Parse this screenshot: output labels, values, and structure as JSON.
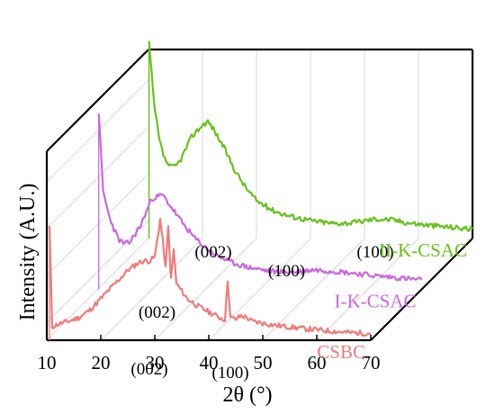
{
  "chart_data": {
    "type": "line",
    "title": "",
    "xlabel": "2θ (°)",
    "ylabel": "Intensity (A.U.)",
    "xlim": [
      10,
      70
    ],
    "x_ticks": [
      "10",
      "20",
      "30",
      "40",
      "50",
      "60",
      "70"
    ],
    "grid": true,
    "legend": "labels placed at right end of each series",
    "series": [
      {
        "name": "CSBC",
        "color": "#f07a7a",
        "depth": 0,
        "x": [
          10.5,
          11,
          12,
          14,
          16,
          18,
          20,
          22,
          24,
          25,
          26,
          27,
          28,
          29,
          30,
          31,
          31.5,
          32,
          32.5,
          33,
          33.5,
          34,
          35,
          36,
          38,
          40,
          42,
          43,
          43.5,
          44,
          45,
          46,
          47,
          48,
          50,
          52,
          55,
          58,
          62,
          66,
          70
        ],
        "y": [
          3,
          0.35,
          0.42,
          0.5,
          0.6,
          0.8,
          1.1,
          1.4,
          1.7,
          1.85,
          1.95,
          2.05,
          2.1,
          2.1,
          2.2,
          3.2,
          2.6,
          1.9,
          3.0,
          1.6,
          2.4,
          1.5,
          1.3,
          1.1,
          0.9,
          0.75,
          0.6,
          0.55,
          1.6,
          0.6,
          0.55,
          0.65,
          0.6,
          0.5,
          0.45,
          0.4,
          0.35,
          0.3,
          0.25,
          0.2,
          0.18
        ]
      },
      {
        "name": "I-K-CSAC",
        "color": "#cc66e0",
        "depth": 1,
        "x": [
          10.2,
          11,
          12,
          13,
          14,
          15,
          16,
          18,
          20,
          22,
          24,
          26,
          28,
          30,
          32,
          35,
          38,
          42,
          46,
          50,
          54,
          58,
          62,
          66,
          70
        ],
        "y": [
          4.7,
          2.6,
          2.0,
          1.6,
          1.3,
          1.2,
          1.25,
          1.7,
          2.4,
          2.5,
          2.1,
          1.7,
          1.35,
          1.1,
          0.9,
          0.7,
          0.58,
          0.48,
          0.45,
          0.52,
          0.48,
          0.42,
          0.35,
          0.3,
          0.25
        ]
      },
      {
        "name": "II-K-CSAC",
        "color": "#66c21a",
        "depth": 2,
        "x": [
          10.1,
          11,
          12,
          13,
          14,
          15,
          16,
          18,
          20,
          21,
          22,
          24,
          26,
          28,
          30,
          33,
          36,
          40,
          44,
          48,
          52,
          55,
          58,
          62,
          66,
          70
        ],
        "y": [
          5.2,
          3.6,
          2.6,
          2.1,
          1.9,
          1.9,
          2.1,
          2.7,
          3.0,
          3.1,
          2.9,
          2.4,
          1.8,
          1.35,
          1.0,
          0.75,
          0.6,
          0.48,
          0.4,
          0.42,
          0.52,
          0.5,
          0.42,
          0.35,
          0.3,
          0.25
        ]
      }
    ],
    "annotations": [
      {
        "text": "(002)",
        "series": "CSBC",
        "x": 29,
        "y": -0.9
      },
      {
        "text": "(100)",
        "series": "CSBC",
        "x": 44,
        "y": -1.0
      },
      {
        "text": "(002)",
        "series": "I-K-CSAC",
        "x": 21,
        "y": -0.75
      },
      {
        "text": "(100)",
        "series": "I-K-CSAC",
        "x": 45,
        "y": 0.35
      },
      {
        "text": "(002)",
        "series": "II-K-CSAC",
        "x": 22,
        "y": -0.5
      },
      {
        "text": "(100)",
        "series": "II-K-CSAC",
        "x": 52,
        "y": -0.5
      }
    ]
  }
}
